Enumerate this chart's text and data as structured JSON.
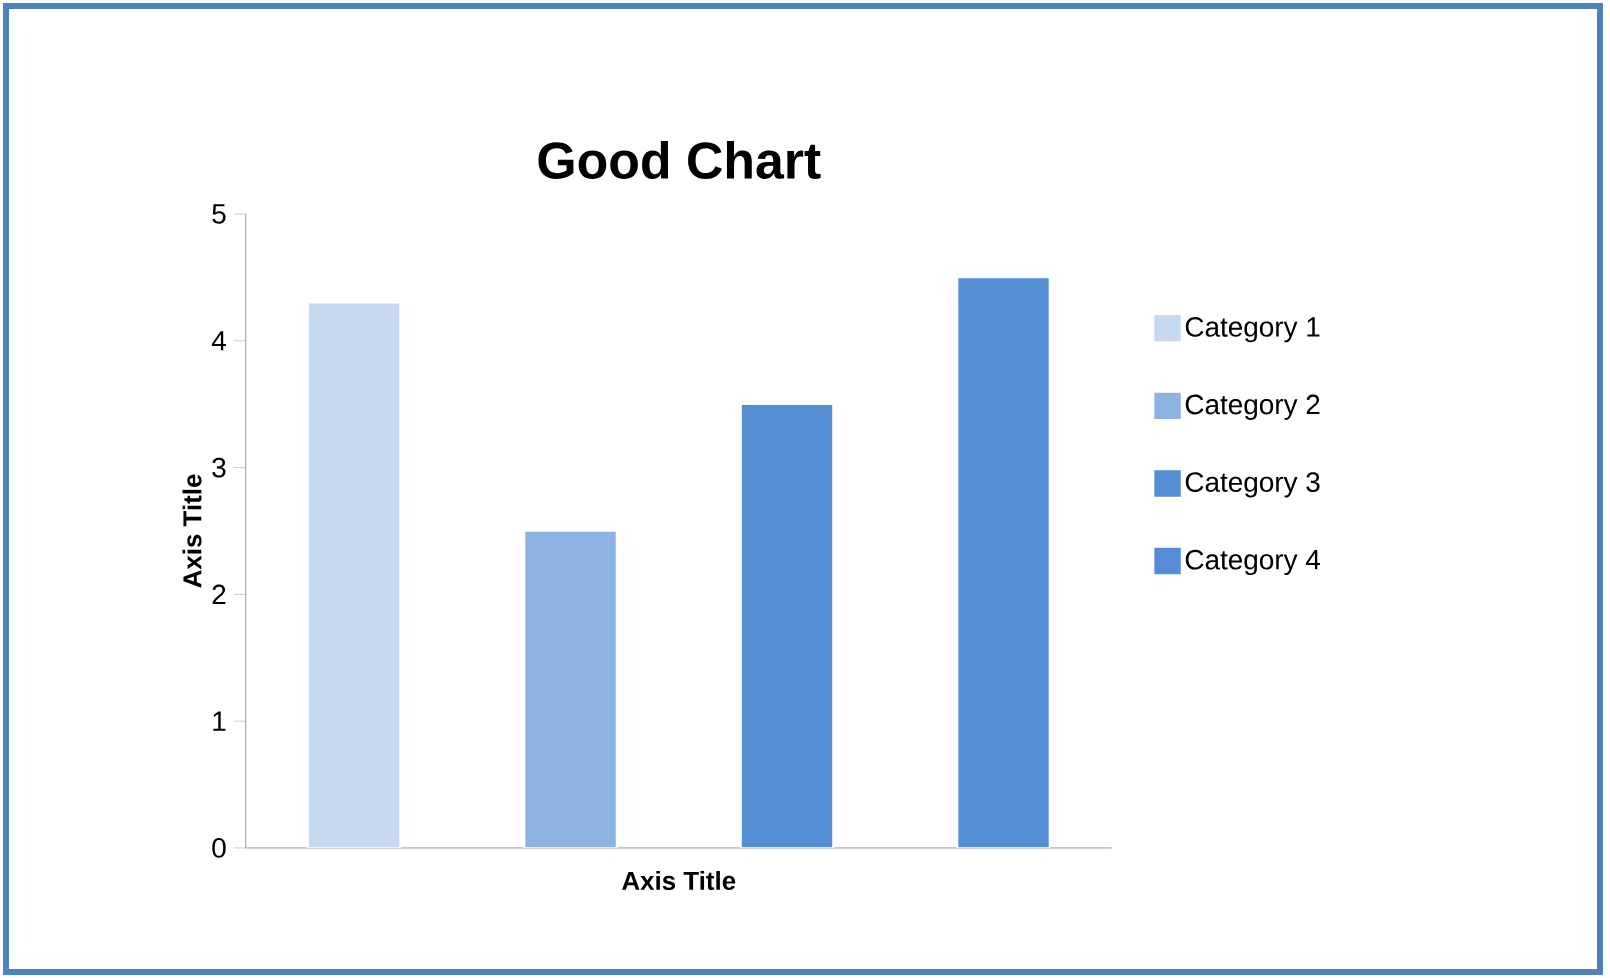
{
  "chart_data": {
    "type": "bar",
    "title": "Good Chart",
    "xlabel": "Axis Title",
    "ylabel": "Axis Title",
    "categories": [
      null,
      null,
      null,
      null
    ],
    "series": [
      {
        "name": "Category 1",
        "color": "#c6d9f1",
        "values": [
          4.3,
          null,
          null,
          null
        ]
      },
      {
        "name": "Category 2",
        "color": "#8db3e2",
        "values": [
          null,
          2.5,
          null,
          null
        ]
      },
      {
        "name": "Category 3",
        "color": "#558ed5",
        "values": [
          null,
          null,
          3.5,
          null
        ]
      },
      {
        "name": "Category 4",
        "color": "#558ed5",
        "values": [
          null,
          null,
          null,
          4.5
        ]
      }
    ],
    "ylim": [
      0,
      5
    ],
    "yticks": [
      0,
      1,
      2,
      3,
      4,
      5
    ],
    "grid": false,
    "legend": "right"
  }
}
